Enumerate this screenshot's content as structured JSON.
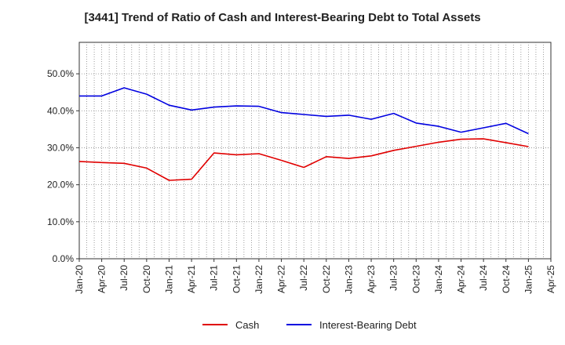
{
  "chart_data": {
    "type": "line",
    "title": "[3441]  Trend of Ratio of Cash and Interest-Bearing Debt to Total Assets",
    "xlabel": "",
    "ylabel": "",
    "x_ticks": [
      "Jan-20",
      "Apr-20",
      "Jul-20",
      "Oct-20",
      "Jan-21",
      "Apr-21",
      "Jul-21",
      "Oct-21",
      "Jan-22",
      "Apr-22",
      "Jul-22",
      "Oct-22",
      "Jan-23",
      "Apr-23",
      "Jul-23",
      "Oct-23",
      "Jan-24",
      "Apr-24",
      "Jul-24",
      "Oct-24",
      "Jan-25",
      "Apr-25"
    ],
    "y_ticks": [
      "0.0%",
      "10.0%",
      "20.0%",
      "30.0%",
      "40.0%",
      "50.0%"
    ],
    "ylim": [
      0,
      50
    ],
    "grid": true,
    "legend_position": "bottom",
    "series": [
      {
        "name": "Cash",
        "color": "#e00000",
        "x": [
          "Jan-20",
          "Apr-20",
          "Jul-20",
          "Oct-20",
          "Jan-21",
          "Apr-21",
          "Jul-21",
          "Oct-21",
          "Jan-22",
          "Apr-22",
          "Jul-22",
          "Oct-22",
          "Jan-23",
          "Apr-23",
          "Jul-23",
          "Oct-23",
          "Jan-24",
          "Apr-24",
          "Jul-24",
          "Oct-24",
          "Jan-25"
        ],
        "values": [
          26.3,
          26.0,
          25.8,
          24.5,
          21.2,
          21.5,
          28.6,
          28.1,
          28.4,
          26.6,
          24.7,
          27.6,
          27.1,
          27.8,
          29.3,
          30.4,
          31.5,
          32.3,
          32.4,
          31.4,
          30.3
        ]
      },
      {
        "name": "Interest-Bearing Debt",
        "color": "#0000e0",
        "x": [
          "Jan-20",
          "Apr-20",
          "Jul-20",
          "Oct-20",
          "Jan-21",
          "Apr-21",
          "Jul-21",
          "Oct-21",
          "Jan-22",
          "Apr-22",
          "Jul-22",
          "Oct-22",
          "Jan-23",
          "Apr-23",
          "Jul-23",
          "Oct-23",
          "Jan-24",
          "Apr-24",
          "Jul-24",
          "Oct-24",
          "Jan-25"
        ],
        "values": [
          44.0,
          44.0,
          46.2,
          44.5,
          41.5,
          40.2,
          41.0,
          41.3,
          41.2,
          39.5,
          39.0,
          38.5,
          38.8,
          37.7,
          39.3,
          36.7,
          35.8,
          34.2,
          35.4,
          36.6,
          33.8
        ]
      }
    ]
  }
}
